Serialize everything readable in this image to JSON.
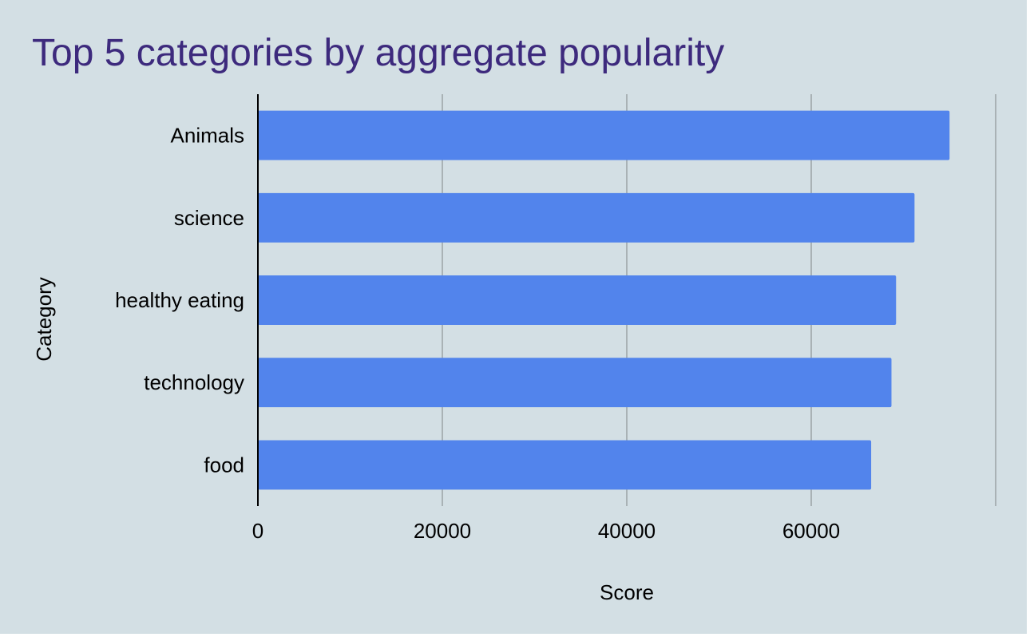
{
  "chart_data": {
    "type": "bar",
    "orientation": "horizontal",
    "title": "Top 5 categories by aggregate popularity",
    "xlabel": "Score",
    "ylabel": "Category",
    "categories": [
      "Animals",
      "science",
      "healthy eating",
      "technology",
      "food"
    ],
    "series": [
      {
        "values": [
          75000,
          71200,
          69200,
          68700,
          66500
        ]
      }
    ],
    "xlim": [
      0,
      80000
    ],
    "xticks": [
      0,
      20000,
      40000,
      60000
    ],
    "xtick_labels": [
      "0",
      "20000",
      "40000",
      "60000"
    ],
    "grid": true,
    "legend": "none",
    "colors": {
      "background": "#d3dfe4",
      "bar": "#5284ec",
      "title": "#3d2a7d",
      "gridline": "#a9b2b5",
      "axis": "#000000",
      "text": "#000000"
    }
  }
}
